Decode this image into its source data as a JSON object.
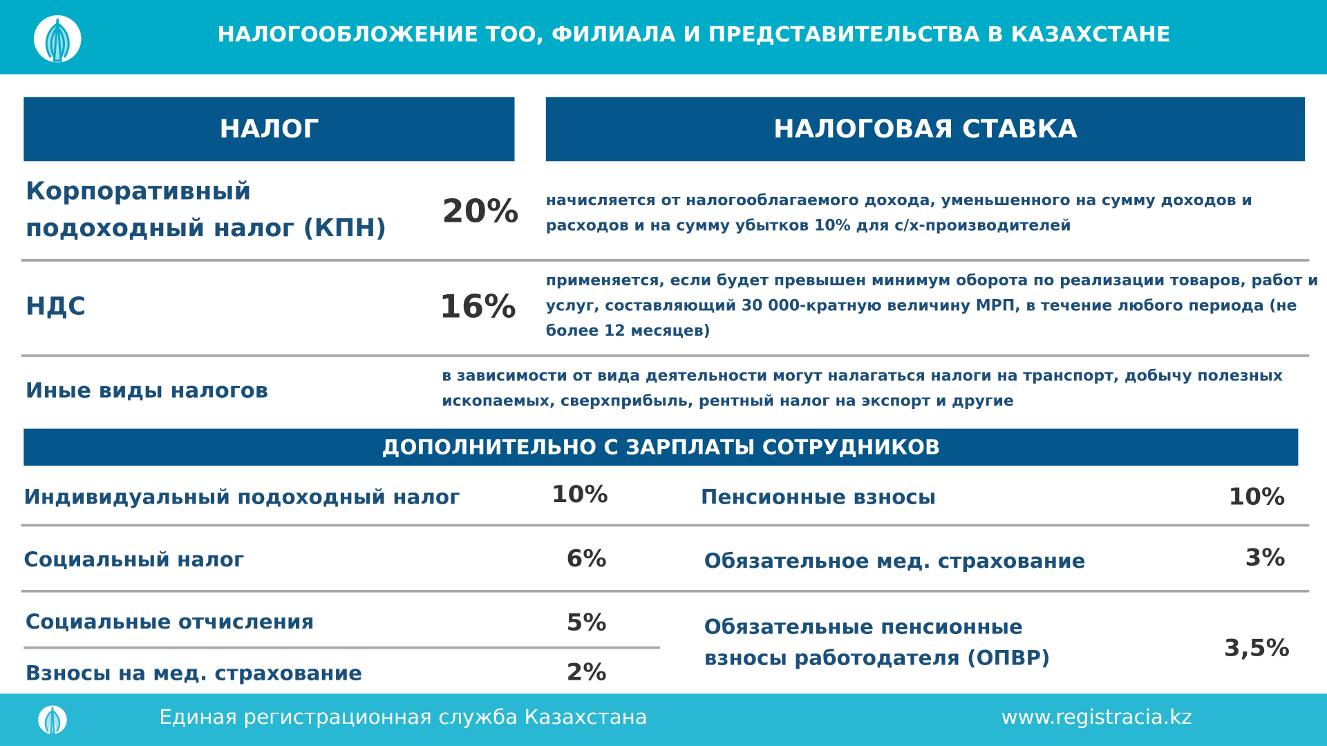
{
  "header": {
    "title": "НАЛОГООБЛОЖЕНИЕ ТОО, ФИЛИАЛА И ПРЕДСТАВИТЕЛЬСТВА В КАЗАХСТАНЕ"
  },
  "table": {
    "headers": [
      "НАЛОГ",
      "НАЛОГОВАЯ СТАВКА"
    ],
    "rows": [
      {
        "name": "Корпоративный подоходный налог (КПН)",
        "rate": "20%",
        "description": "начисляется от налогооблагаемого дохода, уменьшенного на сумму доходов и расходов и на сумму убытков 10% для с/х-производителей"
      },
      {
        "name": "НДС",
        "rate": "16%",
        "description": "применяется, если будет превышен минимум оборота по реализации товаров, работ и услуг, составляющий 30 000-кратную величину МРП, в течение любого периода (не более 12 месяцев)"
      },
      {
        "name": "Иные виды налогов",
        "description": "в зависимости от вида деятельности могут налагаться налоги на транспорт, добычу полезных ископаемых, сверхприбыль, рентный налог на экспорт и другие"
      }
    ]
  },
  "salary": {
    "title": "ДОПОЛНИТЕЛЬНО С ЗАРПЛАТЫ СОТРУДНИКОВ",
    "left": [
      {
        "name": "Индивидуальный подоходный налог",
        "rate": "10%"
      },
      {
        "name": "Социальный налог",
        "rate": "6%"
      },
      {
        "name": "Социальные отчисления",
        "rate": "5%"
      },
      {
        "name": "Взносы на мед. страхование",
        "rate": "2%"
      }
    ],
    "right": [
      {
        "name": "Пенсионные взносы",
        "rate": "10%"
      },
      {
        "name": "Обязательное мед. страхование",
        "rate": "3%"
      },
      {
        "name": "Обязательные пенсионные взносы работодателя (ОПВР)",
        "rate": "3,5%"
      }
    ]
  },
  "footer": {
    "org": "Единая регистрационная служба Казахстана",
    "url": "www.registracia.kz"
  }
}
